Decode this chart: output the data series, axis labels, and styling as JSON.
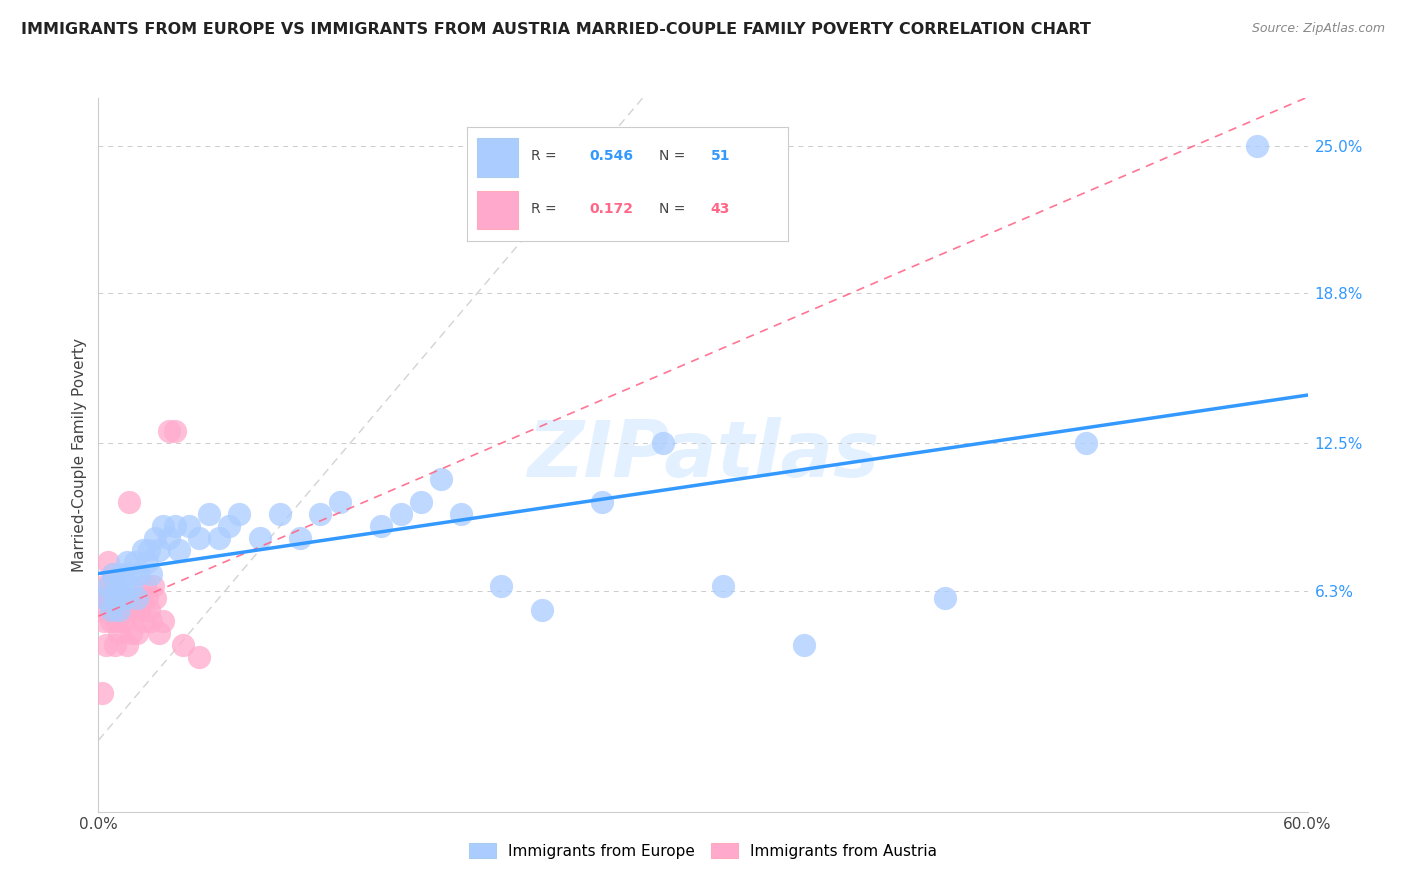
{
  "title": "IMMIGRANTS FROM EUROPE VS IMMIGRANTS FROM AUSTRIA MARRIED-COUPLE FAMILY POVERTY CORRELATION CHART",
  "source": "Source: ZipAtlas.com",
  "ylabel": "Married-Couple Family Poverty",
  "ytick_labels": [
    "25.0%",
    "18.8%",
    "12.5%",
    "6.3%"
  ],
  "ytick_values": [
    0.25,
    0.188,
    0.125,
    0.063
  ],
  "xlim": [
    0.0,
    0.6
  ],
  "ylim": [
    -0.03,
    0.27
  ],
  "watermark": "ZIPatlas",
  "legend": {
    "blue_R": "0.546",
    "blue_N": "51",
    "pink_R": "0.172",
    "pink_N": "43"
  },
  "blue_scatter_x": [
    0.003,
    0.005,
    0.006,
    0.007,
    0.008,
    0.009,
    0.01,
    0.011,
    0.012,
    0.013,
    0.014,
    0.015,
    0.016,
    0.018,
    0.019,
    0.02,
    0.022,
    0.024,
    0.025,
    0.026,
    0.028,
    0.03,
    0.032,
    0.035,
    0.038,
    0.04,
    0.045,
    0.05,
    0.055,
    0.06,
    0.065,
    0.07,
    0.08,
    0.09,
    0.1,
    0.11,
    0.12,
    0.14,
    0.15,
    0.16,
    0.17,
    0.18,
    0.2,
    0.22,
    0.25,
    0.28,
    0.31,
    0.35,
    0.42,
    0.49,
    0.575
  ],
  "blue_scatter_y": [
    0.06,
    0.065,
    0.055,
    0.07,
    0.06,
    0.065,
    0.055,
    0.07,
    0.065,
    0.06,
    0.075,
    0.07,
    0.065,
    0.075,
    0.06,
    0.07,
    0.08,
    0.075,
    0.08,
    0.07,
    0.085,
    0.08,
    0.09,
    0.085,
    0.09,
    0.08,
    0.09,
    0.085,
    0.095,
    0.085,
    0.09,
    0.095,
    0.085,
    0.095,
    0.085,
    0.095,
    0.1,
    0.09,
    0.095,
    0.1,
    0.11,
    0.095,
    0.065,
    0.055,
    0.1,
    0.125,
    0.065,
    0.04,
    0.06,
    0.125,
    0.25
  ],
  "pink_scatter_x": [
    0.001,
    0.002,
    0.003,
    0.003,
    0.004,
    0.004,
    0.005,
    0.005,
    0.006,
    0.006,
    0.007,
    0.007,
    0.008,
    0.008,
    0.009,
    0.009,
    0.01,
    0.01,
    0.011,
    0.012,
    0.013,
    0.014,
    0.015,
    0.015,
    0.016,
    0.017,
    0.018,
    0.019,
    0.02,
    0.021,
    0.022,
    0.023,
    0.024,
    0.025,
    0.026,
    0.027,
    0.028,
    0.03,
    0.032,
    0.035,
    0.038,
    0.042,
    0.05
  ],
  "pink_scatter_y": [
    0.055,
    0.02,
    0.05,
    0.065,
    0.04,
    0.06,
    0.06,
    0.075,
    0.05,
    0.065,
    0.055,
    0.07,
    0.04,
    0.06,
    0.05,
    0.065,
    0.045,
    0.06,
    0.055,
    0.05,
    0.06,
    0.04,
    0.055,
    0.1,
    0.045,
    0.055,
    0.06,
    0.045,
    0.055,
    0.06,
    0.05,
    0.065,
    0.06,
    0.055,
    0.05,
    0.065,
    0.06,
    0.045,
    0.05,
    0.13,
    0.13,
    0.04,
    0.035
  ],
  "blue_line_x": [
    0.0,
    0.6
  ],
  "blue_line_y": [
    0.06,
    0.155
  ],
  "pink_line_x": [
    0.0,
    0.05
  ],
  "pink_line_y": [
    0.055,
    0.065
  ],
  "diag_line_x": [
    0.0,
    0.27
  ],
  "diag_line_y": [
    0.0,
    0.27
  ],
  "blue_line_color": "#3399ff",
  "pink_line_color": "#ff6688",
  "blue_scatter_color": "#aaccff",
  "pink_scatter_color": "#ffaacc",
  "grid_color": "#cccccc",
  "background_color": "#ffffff"
}
